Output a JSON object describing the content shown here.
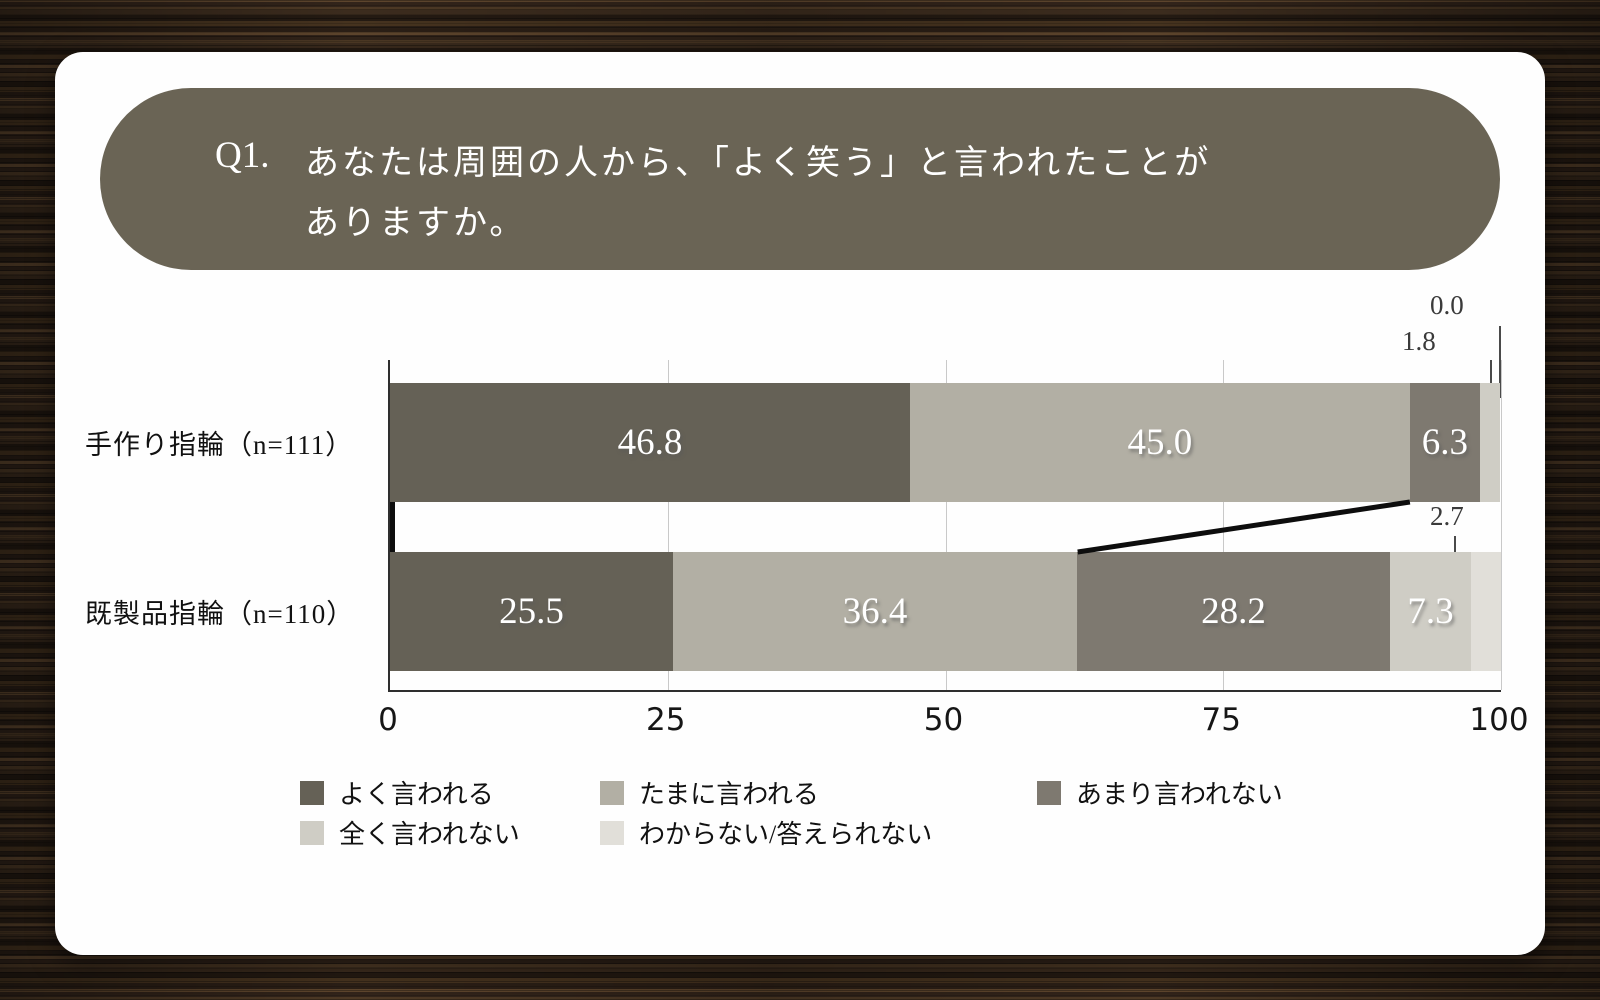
{
  "question": {
    "number": "Q1.",
    "line1": "あなたは周囲の人から、「よく笑う」と言われたことが",
    "line2": "ありますか。"
  },
  "chart_data": {
    "type": "bar",
    "orientation": "horizontal",
    "stacked": true,
    "grid": true,
    "legend_position": "bottom",
    "xlim": [
      0,
      100
    ],
    "x_ticks": [
      0,
      25,
      50,
      75,
      100
    ],
    "categories": [
      "手作り指輪（n=111）",
      "既製品指輪（n=110）"
    ],
    "series": [
      {
        "name": "よく言われる",
        "color": "#656156",
        "values": [
          46.8,
          25.5
        ]
      },
      {
        "name": "たまに言われる",
        "color": "#b2afa4",
        "values": [
          45.0,
          36.4
        ]
      },
      {
        "name": "あまり言われない",
        "color": "#7e7970",
        "values": [
          6.3,
          28.2
        ]
      },
      {
        "name": "全く言われない",
        "color": "#cfcdc5",
        "values": [
          1.8,
          7.3
        ]
      },
      {
        "name": "わからない/答えられない",
        "color": "#e1dfd9",
        "values": [
          0.0,
          2.7
        ]
      }
    ],
    "callouts": [
      {
        "row": 0,
        "series": 4,
        "label": "0.0"
      },
      {
        "row": 0,
        "series": 3,
        "label": "1.8"
      },
      {
        "row": 1,
        "series": 4,
        "label": "2.7"
      }
    ],
    "connectors": [
      {
        "after_series": 0
      },
      {
        "after_series": 2
      }
    ],
    "inline_label_min_pct": 5
  },
  "style_colors": {
    "banner": "#6a6455",
    "card": "#fefefe",
    "axis": "#2e2e2e",
    "gridline": "#c9c9c9"
  }
}
